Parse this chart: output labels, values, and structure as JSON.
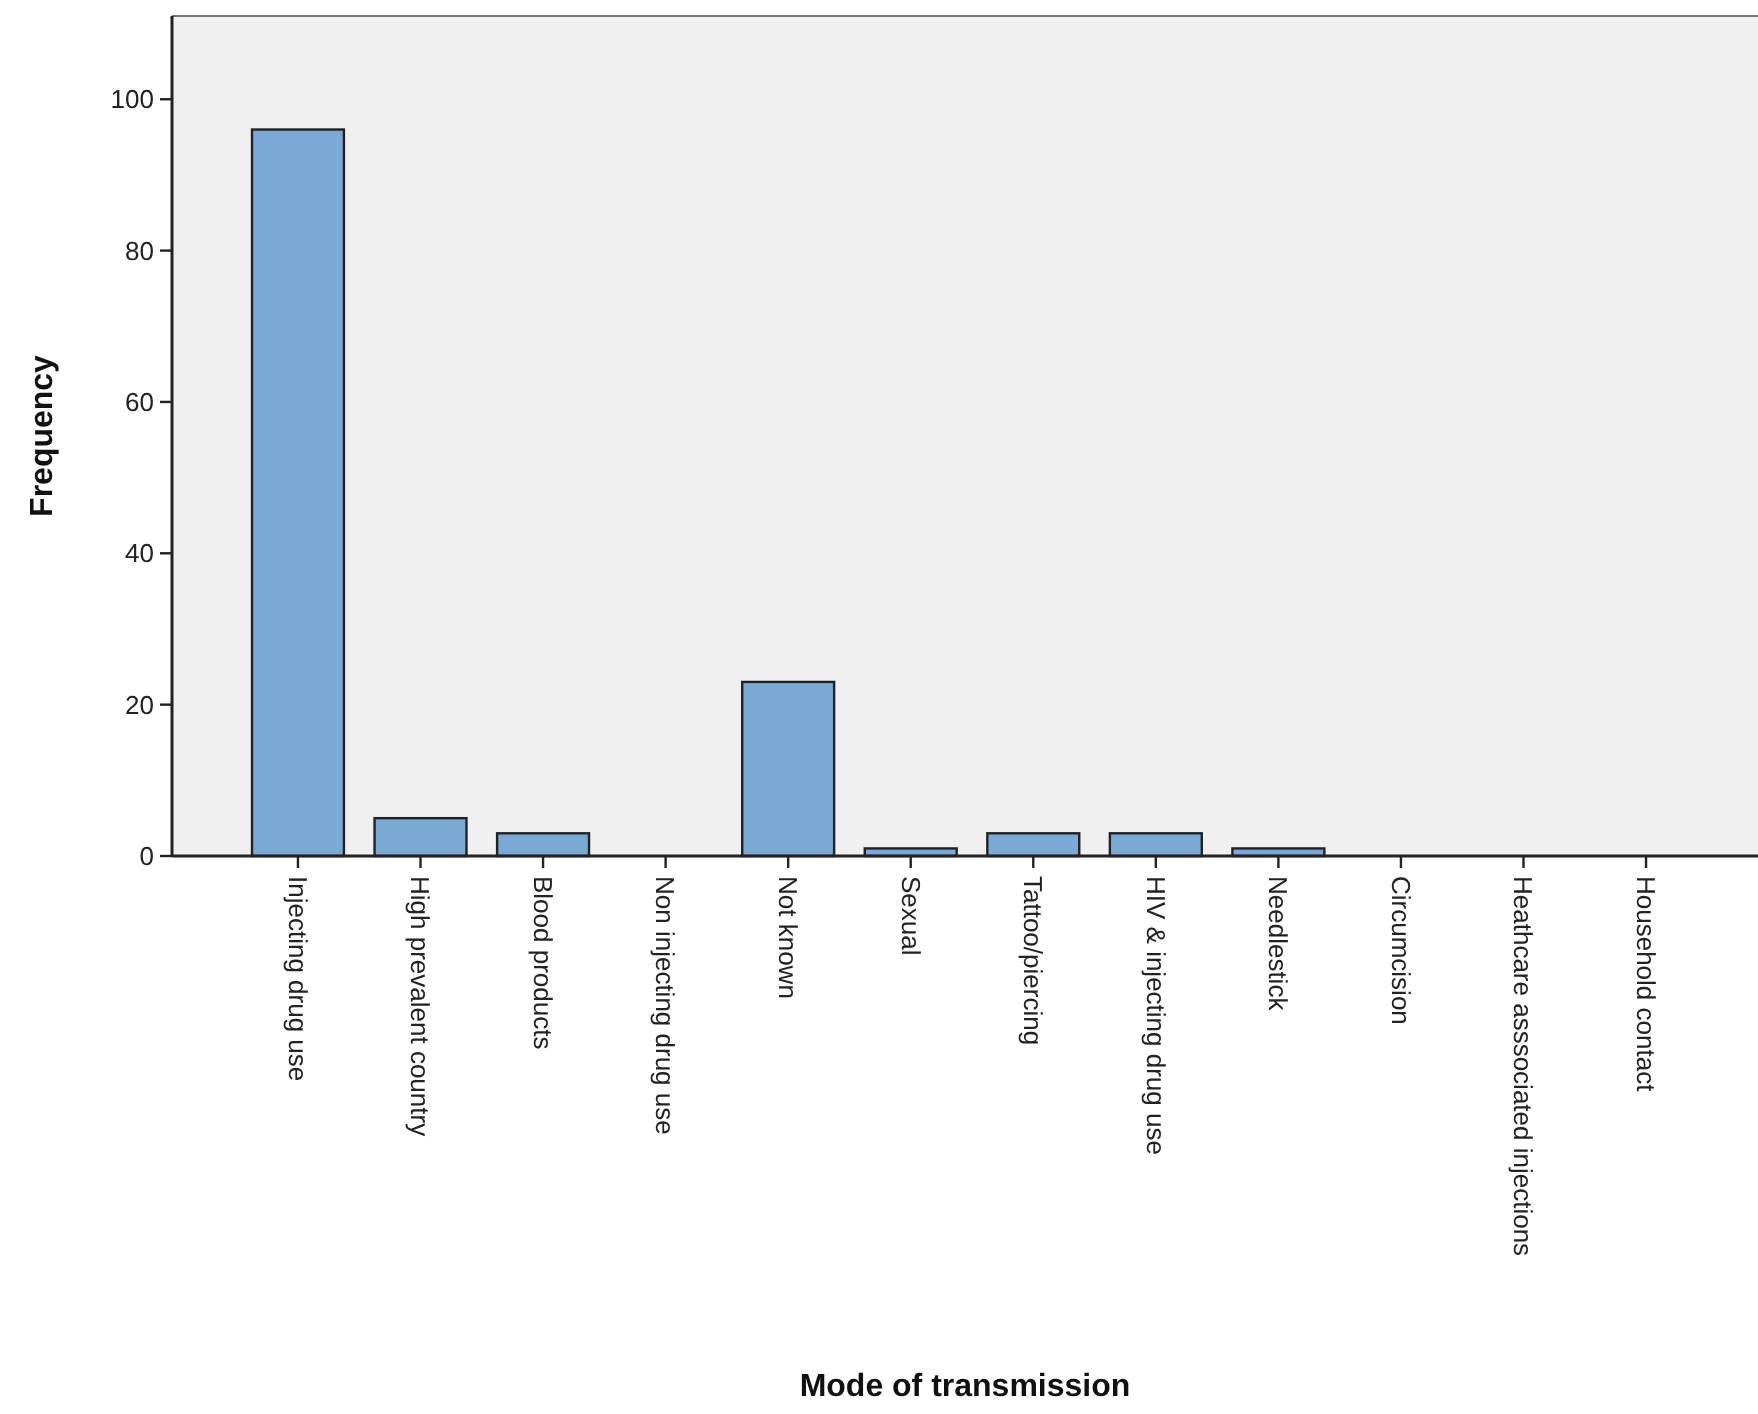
{
  "chart_data": {
    "type": "bar",
    "xlabel": "Mode of transmission",
    "ylabel": "Frequency",
    "categories": [
      "Injecting drug use",
      "High prevalent country",
      "Blood products",
      "Non injecting drug use",
      "Not known",
      "Sexual",
      "Tattoo/piercing",
      "HIV & injecting drug use",
      "Needlestick",
      "Circumcision",
      "Heathcare asssociated injections",
      "Household contact"
    ],
    "values": [
      96,
      5,
      3,
      0,
      23,
      1,
      3,
      3,
      1,
      0,
      0,
      0
    ],
    "color": "#7ba9d6",
    "ylim": [
      0,
      111
    ],
    "yticks": [
      0,
      20,
      40,
      60,
      80,
      100
    ],
    "grid": false
  }
}
